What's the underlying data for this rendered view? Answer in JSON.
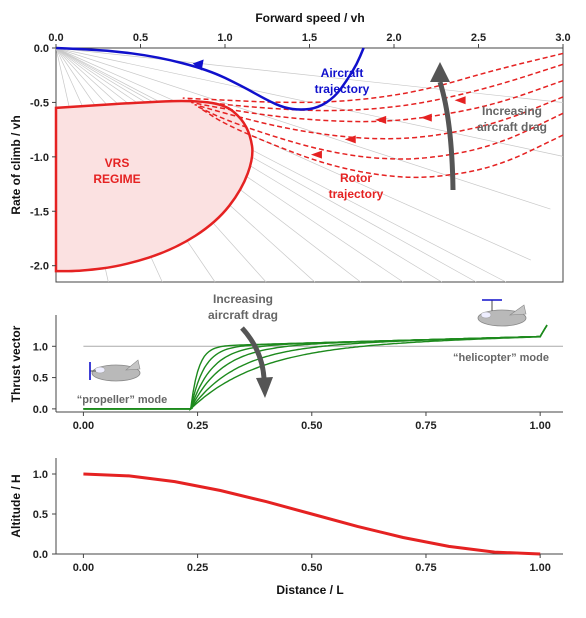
{
  "colors": {
    "aircraft": "#1010cc",
    "rotor": "#e52222",
    "vrs_fill": "#fbe1e1",
    "thrust": "#1d8a1d",
    "altitude": "#e52222",
    "arrow_gray": "#666666",
    "guide_gray": "#c8c8c8"
  },
  "chart_data": [
    {
      "type": "line",
      "xlabel": "Forward speed / vh",
      "ylabel": "Rate of climb / vh",
      "xlim": [
        0,
        3
      ],
      "ylim": [
        -2.15,
        0
      ],
      "xticks": [
        "0.0",
        "0.5",
        "1.0",
        "1.5",
        "2.0",
        "2.5",
        "3.0"
      ],
      "yticks": [
        "0.0",
        "-0.5",
        "-1.0",
        "-1.5",
        "-2.0"
      ],
      "x_axis_position": "top",
      "annotations": {
        "aircraft": [
          "Aircraft",
          "trajectory"
        ],
        "vrs": [
          "VRS",
          "REGIME"
        ],
        "rotor": [
          "Rotor",
          "trajectory"
        ],
        "drag": [
          "Increasing",
          "aircraft drag"
        ]
      },
      "vrs_boundary": {
        "x": [
          0,
          0.5,
          0.8,
          1.0,
          1.1,
          1.15,
          1.17,
          1.1,
          0.95,
          0.7,
          0.4,
          0.15,
          0
        ],
        "y": [
          -0.55,
          -0.5,
          -0.48,
          -0.52,
          -0.65,
          -0.8,
          -1.0,
          -1.3,
          -1.6,
          -1.85,
          -2.0,
          -2.05,
          -2.05
        ]
      },
      "aircraft_trajectory": {
        "x": [
          0,
          0.3,
          0.6,
          0.9,
          1.1,
          1.25,
          1.35,
          1.45,
          1.55,
          1.65,
          1.72,
          1.78,
          1.82
        ],
        "y": [
          0,
          -0.02,
          -0.08,
          -0.2,
          -0.35,
          -0.48,
          -0.55,
          -0.57,
          -0.55,
          -0.45,
          -0.3,
          -0.15,
          0
        ]
      },
      "rotor_trajectories": [
        {
          "x": [
            3.0,
            2.6,
            2.2,
            1.9,
            1.6,
            1.3,
            1.0,
            0.75
          ],
          "y": [
            -0.05,
            -0.2,
            -0.38,
            -0.46,
            -0.5,
            -0.5,
            -0.48,
            -0.46
          ]
        },
        {
          "x": [
            3.0,
            2.6,
            2.2,
            1.9,
            1.6,
            1.3,
            1.0,
            0.78
          ],
          "y": [
            -0.15,
            -0.35,
            -0.5,
            -0.56,
            -0.58,
            -0.56,
            -0.52,
            -0.48
          ]
        },
        {
          "x": [
            3.0,
            2.6,
            2.2,
            1.9,
            1.6,
            1.3,
            1.0,
            0.8
          ],
          "y": [
            -0.3,
            -0.52,
            -0.64,
            -0.68,
            -0.67,
            -0.63,
            -0.56,
            -0.5
          ]
        },
        {
          "x": [
            3.0,
            2.6,
            2.2,
            1.9,
            1.6,
            1.3,
            1.0,
            0.82
          ],
          "y": [
            -0.45,
            -0.7,
            -0.82,
            -0.84,
            -0.8,
            -0.72,
            -0.6,
            -0.52
          ]
        },
        {
          "x": [
            3.0,
            2.6,
            2.2,
            1.9,
            1.6,
            1.3,
            1.0,
            0.84
          ],
          "y": [
            -0.6,
            -0.9,
            -1.02,
            -1.02,
            -0.95,
            -0.82,
            -0.66,
            -0.54
          ]
        },
        {
          "x": [
            3.0,
            2.6,
            2.2,
            1.9,
            1.6,
            1.3,
            1.0,
            0.86
          ],
          "y": [
            -0.8,
            -1.1,
            -1.2,
            -1.17,
            -1.07,
            -0.9,
            -0.7,
            -0.56
          ]
        }
      ],
      "rotor_arrow_positions": [
        {
          "x": 2.4,
          "y": -0.48
        },
        {
          "x": 2.2,
          "y": -0.64
        },
        {
          "x": 1.93,
          "y": -0.66
        },
        {
          "x": 1.75,
          "y": -0.84
        },
        {
          "x": 1.55,
          "y": -0.98
        }
      ],
      "aircraft_arrow_position": {
        "x": 0.85,
        "y": -0.17
      }
    },
    {
      "type": "line",
      "xlabel": "",
      "ylabel": "Thrust vector",
      "xlim": [
        -0.06,
        1.05
      ],
      "ylim": [
        -0.05,
        1.5
      ],
      "xticks": [
        "0.00",
        "0.25",
        "0.50",
        "0.75",
        "1.00"
      ],
      "yticks": [
        "0.0",
        "0.5",
        "1.0"
      ],
      "reference_line": 1.0,
      "annotations": {
        "drag": [
          "Increasing",
          "aircraft drag"
        ],
        "propeller_mode": "“propeller” mode",
        "helicopter_mode": "“helicopter” mode"
      },
      "curves_switch_x": 0.235,
      "curve_rise_rates": [
        60,
        35,
        22,
        15,
        10,
        7
      ]
    },
    {
      "type": "line",
      "xlabel": "Distance / L",
      "ylabel": "Altitude / H",
      "xlim": [
        -0.06,
        1.05
      ],
      "ylim": [
        0,
        1.2
      ],
      "xticks": [
        "0.00",
        "0.25",
        "0.50",
        "0.75",
        "1.00"
      ],
      "yticks": [
        "0.0",
        "0.5",
        "1.0"
      ],
      "series": [
        {
          "x": [
            0.0,
            0.1,
            0.2,
            0.3,
            0.4,
            0.5,
            0.6,
            0.7,
            0.8,
            0.9,
            1.0
          ],
          "y": [
            1.0,
            0.976,
            0.905,
            0.794,
            0.655,
            0.5,
            0.345,
            0.206,
            0.095,
            0.024,
            0.0
          ]
        }
      ]
    }
  ]
}
